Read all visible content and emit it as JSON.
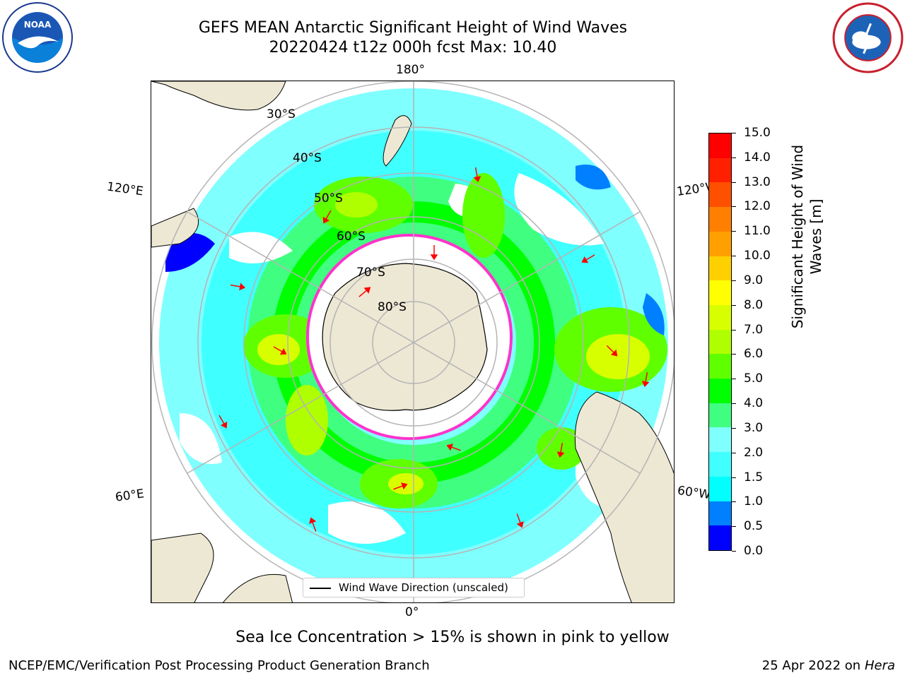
{
  "title": {
    "line1": "GEFS MEAN Antarctic Significant Height of Wind Waves",
    "line2": "20220424 t12z 000h fcst   Max: 10.40"
  },
  "map": {
    "projection": "south polar stereographic",
    "longitude_labels": {
      "top": "180°",
      "bottom": "0°",
      "upper_left": "120°E",
      "upper_right": "120°W",
      "lower_left": "60°E",
      "lower_right": "60°W"
    },
    "latitude_labels": [
      "30°S",
      "40°S",
      "50°S",
      "60°S",
      "70°S",
      "80°S"
    ],
    "legend": "Wind Wave Direction (unscaled)",
    "colors": {
      "land": "#ede8d4",
      "grid": "#b4b4b4",
      "sea_ice": "#ff33cc",
      "arrow": "#ff0000"
    }
  },
  "colorbar": {
    "title_line1": "Significant Height of Wind",
    "title_line2": "Waves [m]",
    "ticks": [
      "0.0",
      "0.5",
      "1.0",
      "1.5",
      "2.0",
      "3.0",
      "4.0",
      "5.0",
      "6.0",
      "7.0",
      "8.0",
      "9.0",
      "10.0",
      "11.0",
      "12.0",
      "13.0",
      "14.0",
      "15.0"
    ],
    "colors": [
      "#0000ff",
      "#0080ff",
      "#00ffff",
      "#40ffff",
      "#80ffff",
      "#40ff80",
      "#00ff00",
      "#60ff00",
      "#b0ff00",
      "#d8ff00",
      "#ffff00",
      "#ffd000",
      "#ffa000",
      "#ff8000",
      "#ff5000",
      "#ff2000",
      "#ff0000"
    ]
  },
  "note": "Sea Ice Concentration > 15% is shown in pink to yellow",
  "footer": {
    "left": "NCEP/EMC/Verification Post Processing Product Generation Branch",
    "right_date": "25 Apr 2022 on ",
    "right_host": "Hera"
  }
}
